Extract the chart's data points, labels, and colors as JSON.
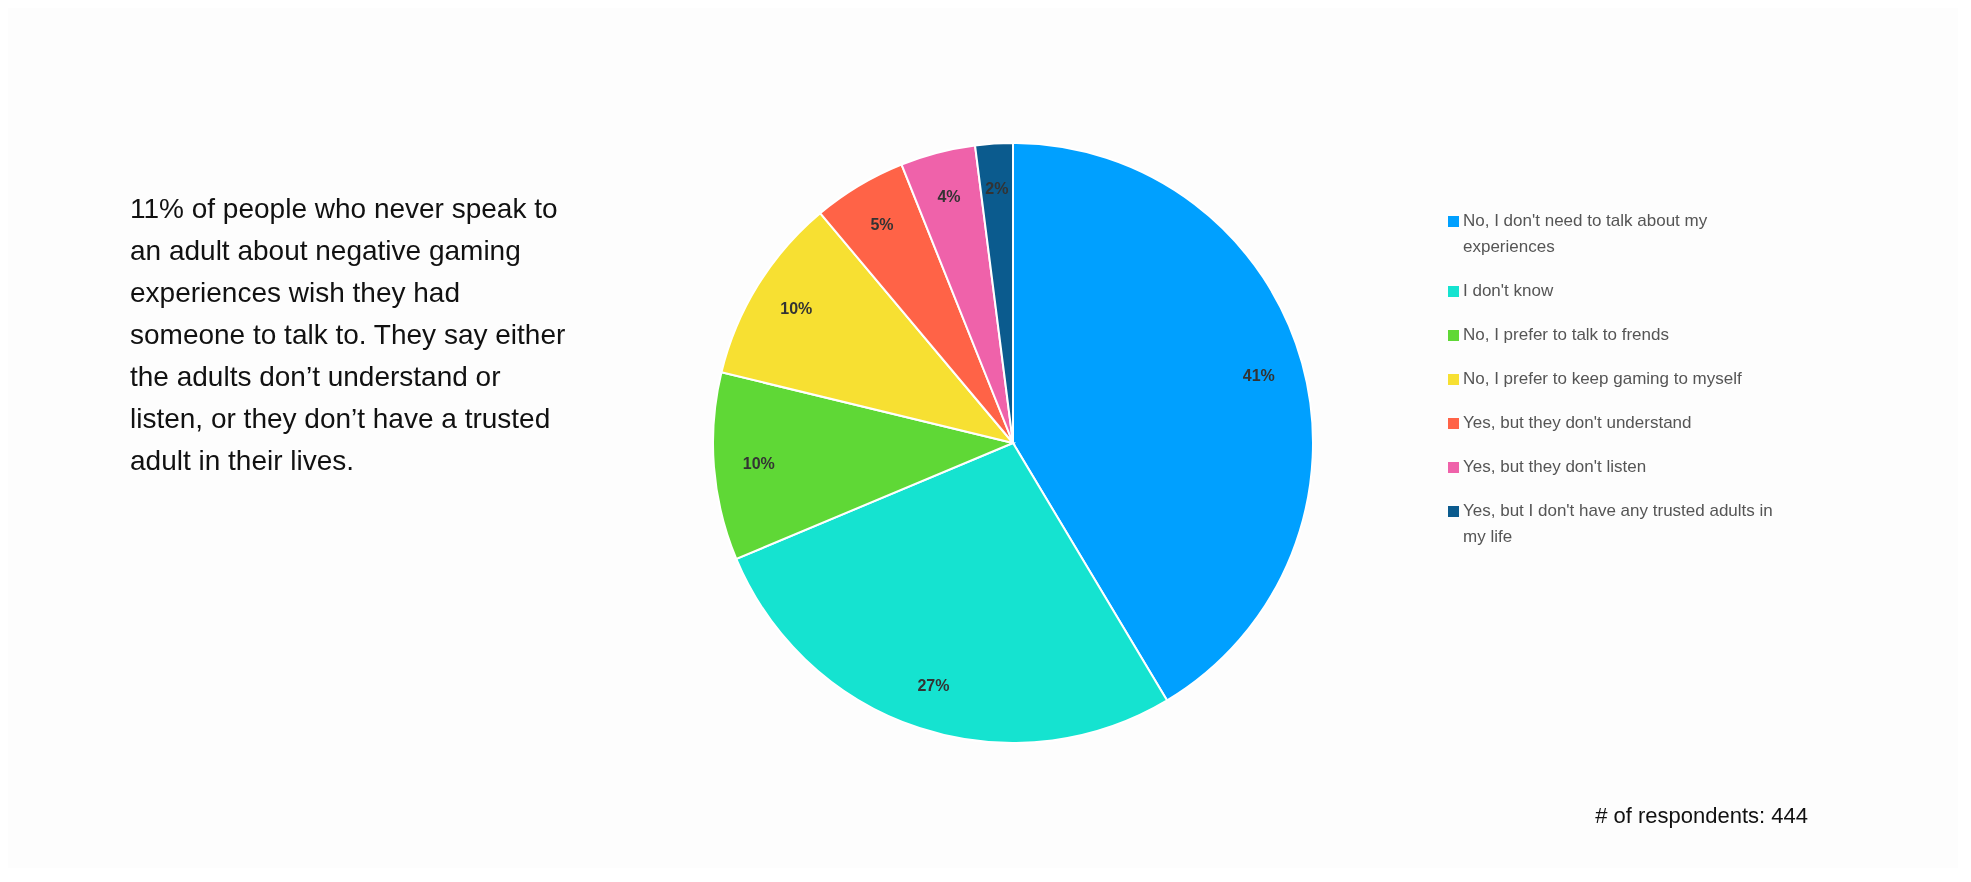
{
  "chart_data": {
    "type": "pie",
    "categories": [
      "No, I don't need to talk about my experiences",
      "I don't know",
      "No, I prefer to talk to frends",
      "No, I prefer to keep gaming to myself",
      "Yes, but they don't understand",
      "Yes, but they don't listen",
      "Yes, but I don't have any trusted adults in my life"
    ],
    "values": [
      41,
      27,
      10,
      10,
      5,
      4,
      2
    ],
    "colors": [
      "#00a0ff",
      "#15e3d0",
      "#5fd836",
      "#f7e032",
      "#ff6347",
      "#ef62aa",
      "#0b5b8e"
    ],
    "value_labels": [
      "41%",
      "27%",
      "10%",
      "10%",
      "5%",
      "4%",
      "2%"
    ],
    "legend": "right",
    "annotations": [
      "11% of people who never speak to an adult about negative gaming experiences wish they had someone to talk to. They say either the adults don’t understand or listen, or they don’t have a trusted adult in their lives.",
      "# of respondents: 444"
    ]
  }
}
